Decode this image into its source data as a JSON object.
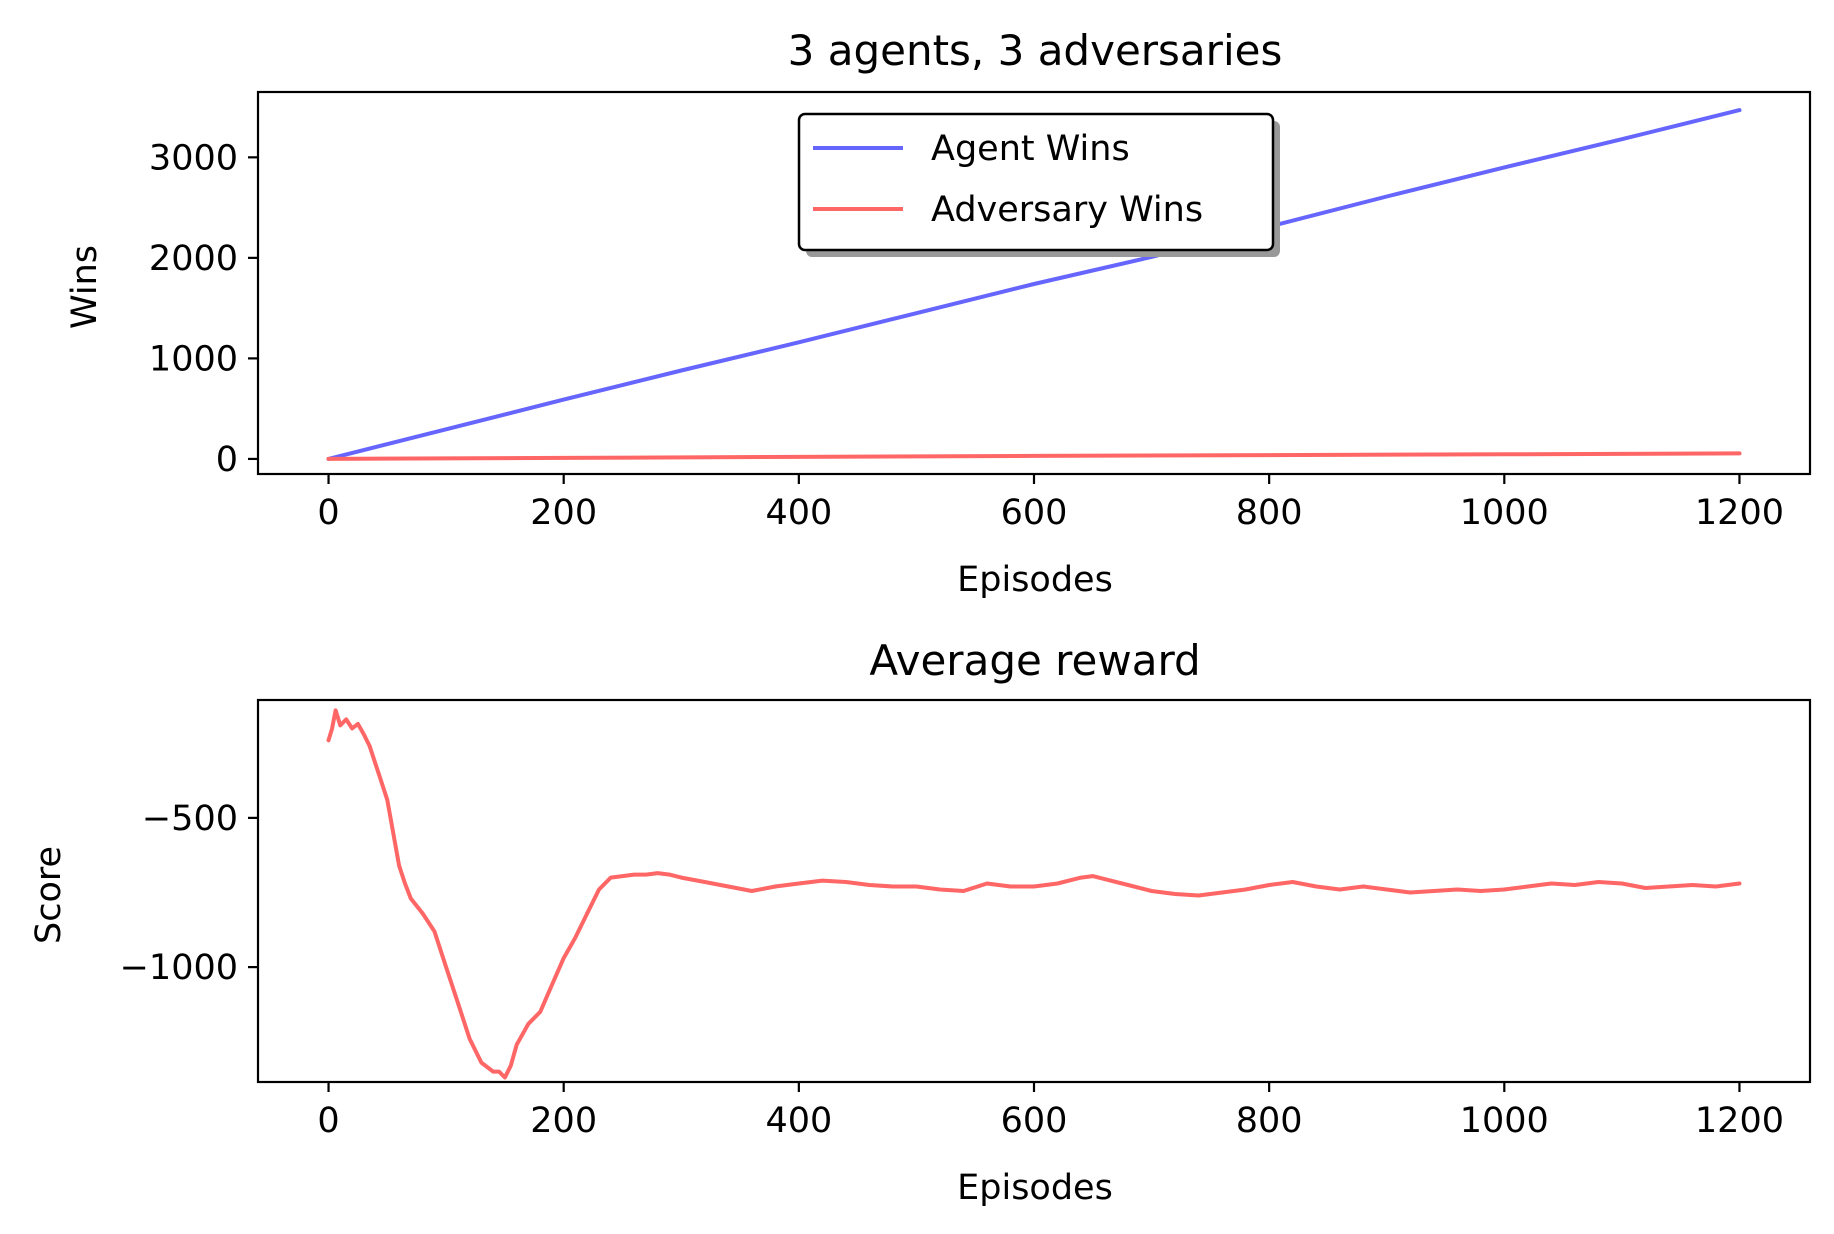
{
  "chart_data": [
    {
      "type": "line",
      "title": "3 agents, 3 adversaries",
      "xlabel": "Episodes",
      "ylabel": "Wins",
      "xlim": [
        -60,
        1260
      ],
      "ylim": [
        -150,
        3650
      ],
      "xticks": [
        0,
        200,
        400,
        600,
        800,
        1000,
        1200
      ],
      "yticks": [
        0,
        1000,
        2000,
        3000
      ],
      "legend_position": "top-center",
      "legend": [
        "Agent Wins",
        "Adversary Wins"
      ],
      "grid": false,
      "series": [
        {
          "name": "Agent Wins",
          "color": "#6666ff",
          "x": [
            0,
            100,
            200,
            300,
            400,
            500,
            600,
            700,
            800,
            900,
            1000,
            1100,
            1200
          ],
          "y": [
            0,
            295,
            590,
            880,
            1160,
            1450,
            1740,
            2010,
            2310,
            2610,
            2900,
            3180,
            3470
          ]
        },
        {
          "name": "Adversary Wins",
          "color": "#ff6666",
          "x": [
            0,
            200,
            400,
            600,
            800,
            1000,
            1200
          ],
          "y": [
            0,
            10,
            20,
            30,
            38,
            46,
            55
          ]
        }
      ]
    },
    {
      "type": "line",
      "title": "Average reward",
      "xlabel": "Episodes",
      "ylabel": "Score",
      "xlim": [
        -60,
        1260
      ],
      "ylim": [
        -1385,
        -105
      ],
      "xticks": [
        0,
        200,
        400,
        600,
        800,
        1000,
        1200
      ],
      "yticks": [
        -500,
        -1000
      ],
      "ytick_labels": [
        "−500",
        "−1000"
      ],
      "grid": false,
      "series": [
        {
          "color": "#ff6666",
          "x": [
            0,
            3,
            6,
            10,
            15,
            20,
            25,
            30,
            35,
            40,
            45,
            50,
            55,
            60,
            65,
            70,
            80,
            90,
            100,
            110,
            120,
            130,
            140,
            145,
            150,
            155,
            160,
            170,
            180,
            190,
            200,
            210,
            220,
            230,
            240,
            250,
            260,
            270,
            280,
            290,
            300,
            320,
            340,
            360,
            380,
            400,
            420,
            440,
            460,
            480,
            500,
            520,
            540,
            560,
            580,
            600,
            620,
            640,
            650,
            660,
            680,
            700,
            720,
            740,
            760,
            780,
            800,
            820,
            840,
            860,
            880,
            900,
            920,
            940,
            960,
            980,
            1000,
            1020,
            1040,
            1060,
            1080,
            1100,
            1120,
            1140,
            1160,
            1180,
            1200
          ],
          "y": [
            -240,
            -200,
            -140,
            -190,
            -170,
            -200,
            -185,
            -220,
            -260,
            -320,
            -380,
            -440,
            -550,
            -660,
            -720,
            -770,
            -820,
            -880,
            -1000,
            -1120,
            -1240,
            -1320,
            -1350,
            -1350,
            -1370,
            -1330,
            -1260,
            -1190,
            -1150,
            -1060,
            -970,
            -900,
            -820,
            -740,
            -700,
            -695,
            -690,
            -690,
            -685,
            -690,
            -700,
            -715,
            -730,
            -745,
            -730,
            -720,
            -710,
            -715,
            -725,
            -730,
            -730,
            -740,
            -745,
            -720,
            -730,
            -730,
            -720,
            -700,
            -695,
            -705,
            -725,
            -745,
            -755,
            -760,
            -750,
            -740,
            -725,
            -715,
            -730,
            -740,
            -730,
            -740,
            -750,
            -745,
            -740,
            -745,
            -740,
            -730,
            -720,
            -725,
            -715,
            -720,
            -735,
            -730,
            -725,
            -730,
            -720
          ]
        }
      ]
    }
  ]
}
